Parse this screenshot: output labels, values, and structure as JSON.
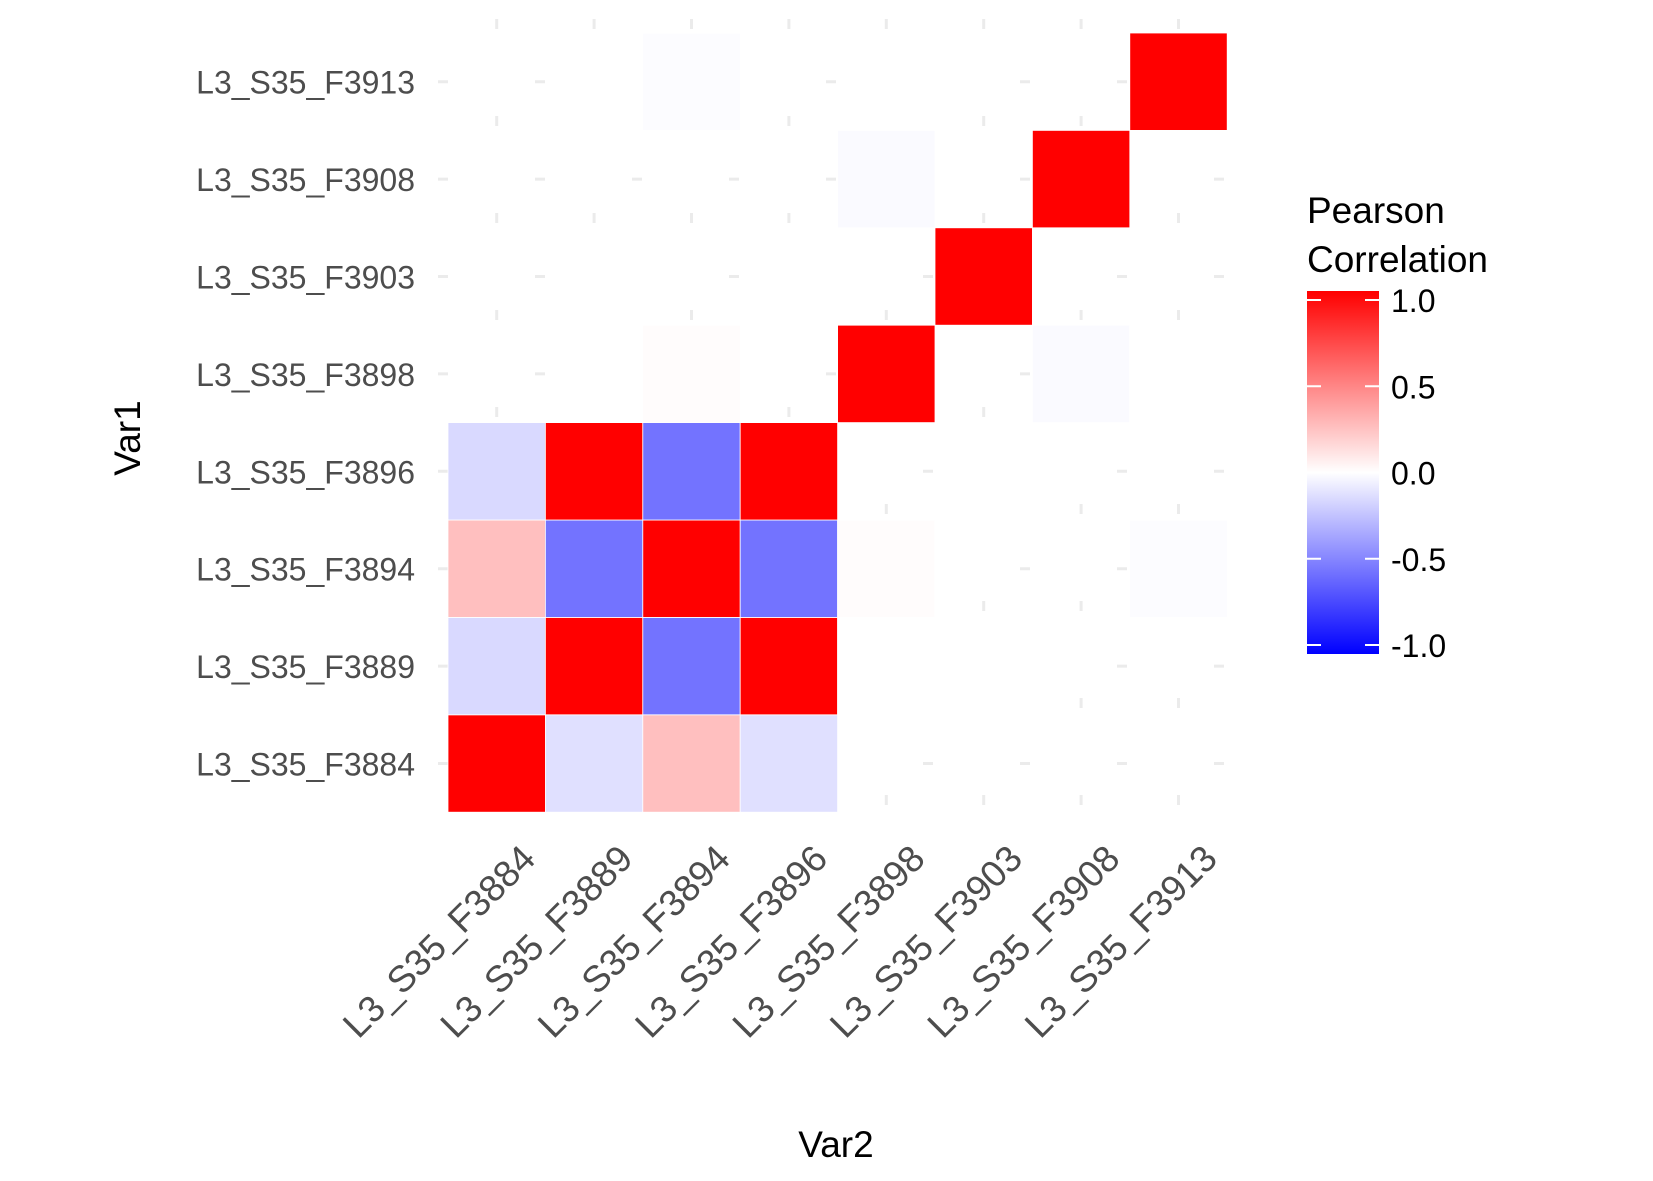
{
  "chart_data": {
    "type": "heatmap",
    "xlabel": "Var2",
    "ylabel": "Var1",
    "x_categories": [
      "L3_S35_F3884",
      "L3_S35_F3889",
      "L3_S35_F3894",
      "L3_S35_F3896",
      "L3_S35_F3898",
      "L3_S35_F3903",
      "L3_S35_F3908",
      "L3_S35_F3913"
    ],
    "y_categories": [
      "L3_S35_F3884",
      "L3_S35_F3889",
      "L3_S35_F3894",
      "L3_S35_F3896",
      "L3_S35_F3898",
      "L3_S35_F3903",
      "L3_S35_F3908",
      "L3_S35_F3913"
    ],
    "values": [
      [
        1.0,
        -0.12,
        0.25,
        -0.12,
        null,
        null,
        null,
        null
      ],
      [
        -0.15,
        1.0,
        -0.55,
        1.0,
        0.0,
        0.0,
        null,
        null
      ],
      [
        0.25,
        -0.55,
        1.0,
        -0.55,
        0.01,
        null,
        null,
        -0.01
      ],
      [
        -0.15,
        1.0,
        -0.55,
        1.0,
        null,
        0.0,
        null,
        null
      ],
      [
        null,
        0.0,
        0.01,
        null,
        1.0,
        null,
        -0.02,
        0.0
      ],
      [
        null,
        0.0,
        null,
        0.0,
        null,
        1.0,
        null,
        null
      ],
      [
        null,
        null,
        null,
        null,
        -0.02,
        null,
        1.0,
        null
      ],
      [
        null,
        0.0,
        -0.01,
        null,
        0.0,
        null,
        null,
        1.0
      ]
    ],
    "legend": {
      "title": [
        "Pearson",
        "Correlation"
      ],
      "ticks": [
        1.0,
        0.5,
        0.0,
        -0.5,
        -1.0
      ],
      "tick_labels": [
        "1.0",
        "0.5",
        "0.0",
        "-0.5",
        "-1.0"
      ],
      "range": [
        -1,
        1
      ],
      "colors": {
        "low": "#0000ff",
        "mid": "#ffffff",
        "high": "#ff0000"
      },
      "placement": "right"
    },
    "grid": true,
    "colors": {
      "grid": "#ebebeb",
      "tile_border": "#ffffff",
      "text": "#4d4d4d",
      "title": "#000000"
    }
  }
}
